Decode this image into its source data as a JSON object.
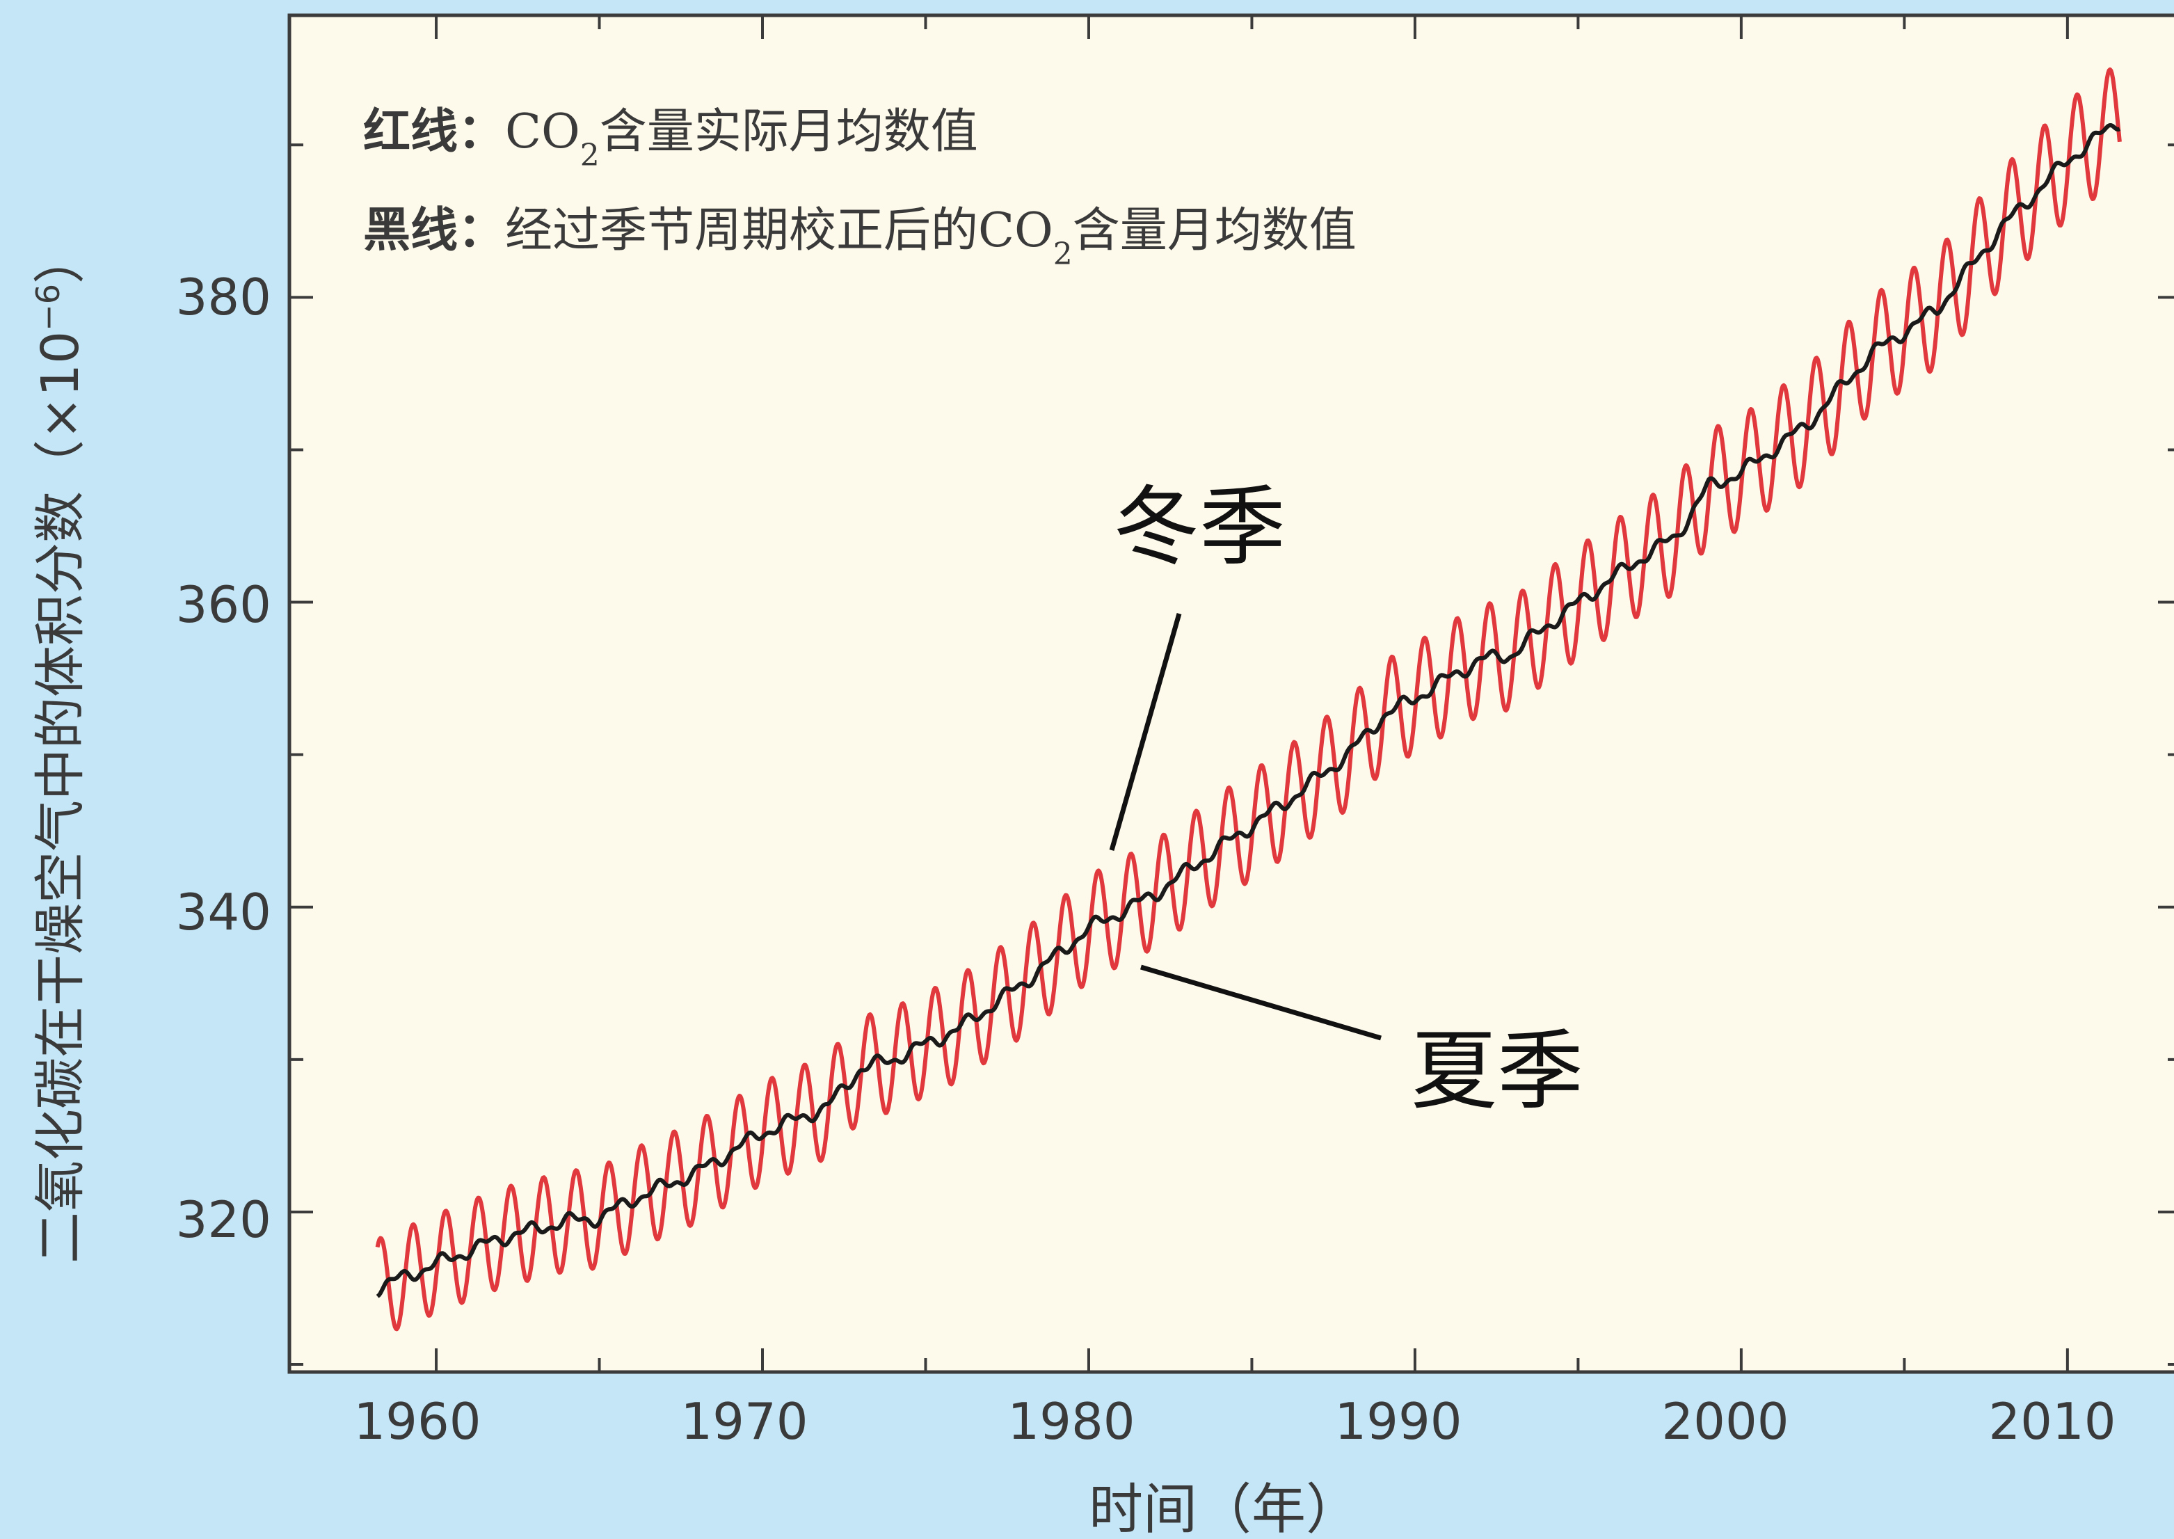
{
  "chart_data": {
    "type": "line",
    "xlabel": "时间（年）",
    "ylabel": "二氧化碳在干燥空气中的体积分数（×10",
    "ylabel_exponent": "−6",
    "ylabel_close": "）",
    "xlim": [
      1955.5,
      2013.5
    ],
    "ylim": [
      309.5,
      398.5
    ],
    "x_ticks": [
      1960,
      1970,
      1980,
      1990,
      2000,
      2010
    ],
    "x_tick_labels": [
      "1960",
      "1970",
      "1980",
      "1990",
      "2000",
      "2010"
    ],
    "y_ticks": [
      320,
      340,
      360,
      380
    ],
    "y_tick_labels": [
      "320",
      "340",
      "360",
      "380"
    ],
    "grid": false,
    "legend": {
      "placement": "top-left",
      "lines": [
        {
          "key": "红线：",
          "pre": "CO",
          "sub": "2",
          "post": "含量实际月均数值",
          "color": "#e0383c"
        },
        {
          "key": "黑线：",
          "pre": "经过季节周期校正后的CO",
          "sub": "2",
          "post": "含量月均数值",
          "color": "#1a1a1a"
        }
      ]
    },
    "series": [
      {
        "color": "#e0383c",
        "kind": "monthly actual (seasonal cycle around trend)",
        "x_start": 1958.2,
        "x_end": 2011.6,
        "seasonal_amplitude": 3.2
      },
      {
        "color": "#1a1a1a",
        "kind": "seasonally adjusted trend",
        "x": [
          1958.2,
          1960,
          1962,
          1964,
          1965,
          1966,
          1968,
          1970,
          1972,
          1973,
          1974,
          1976,
          1978,
          1980,
          1982,
          1984,
          1986,
          1988,
          1989,
          1990,
          1991,
          1992,
          1993,
          1994,
          1996,
          1997,
          1998,
          1999,
          2000,
          2002,
          2004,
          2006,
          2008,
          2010,
          2011.6
        ],
        "y": [
          315.0,
          316.6,
          318.3,
          319.4,
          319.6,
          320.8,
          322.6,
          325.2,
          326.9,
          329.4,
          330.0,
          332.0,
          335.0,
          338.6,
          340.8,
          343.9,
          346.8,
          350.1,
          352.5,
          353.7,
          355.0,
          356.2,
          356.6,
          358.4,
          361.5,
          363.0,
          364.3,
          367.6,
          368.5,
          371.6,
          376.3,
          379.2,
          384.6,
          389.0,
          391.6
        ]
      }
    ],
    "annotations": [
      {
        "text": "冬季",
        "points_to": "seasonal peak near 1981"
      },
      {
        "text": "夏季",
        "points_to": "seasonal trough near 1982"
      }
    ]
  }
}
